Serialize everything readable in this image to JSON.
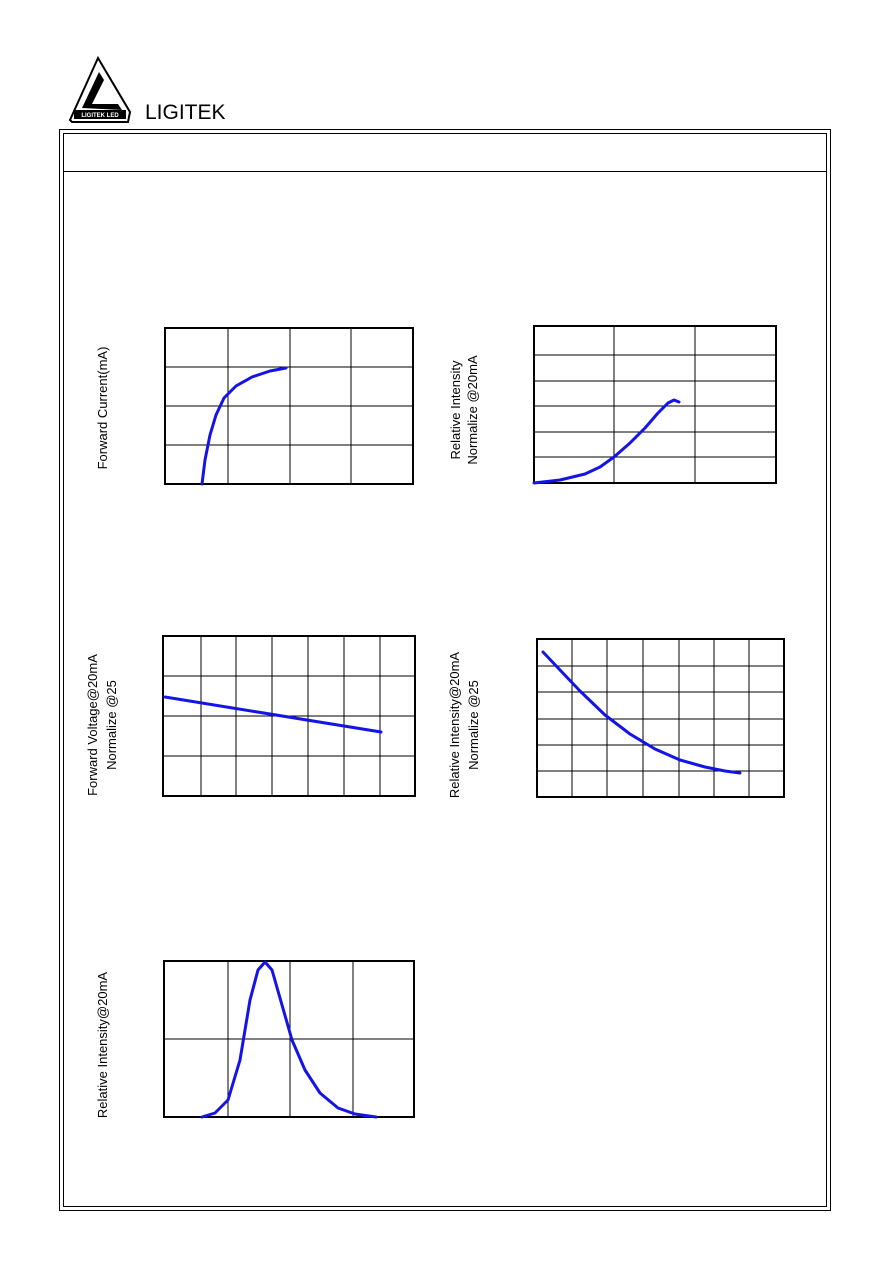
{
  "header": {
    "logo_badge": "LIGITEK LED",
    "brand": "LIGITEK"
  },
  "charts": [
    {
      "y_label_lines": [
        "Forward Current(mA)"
      ]
    },
    {
      "y_label_lines": [
        "Relative Intensity",
        "Normalize @20mA"
      ]
    },
    {
      "y_label_lines": [
        "Forward Voltage@20mA",
        "Normalize @25"
      ]
    },
    {
      "y_label_lines": [
        "Relative Intensity@20mA",
        "Normalize @25"
      ]
    },
    {
      "y_label_lines": [
        "Relative Intensity@20mA"
      ]
    }
  ]
}
